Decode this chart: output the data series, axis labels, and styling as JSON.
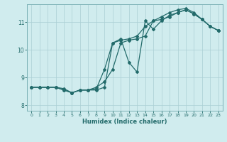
{
  "xlabel": "Humidex (Indice chaleur)",
  "ylabel": "",
  "bg_color": "#d0ecee",
  "grid_color": "#aacfd4",
  "line_color": "#236b6b",
  "xlim": [
    -0.5,
    23.5
  ],
  "ylim": [
    7.8,
    11.65
  ],
  "xticks": [
    0,
    1,
    2,
    3,
    4,
    5,
    6,
    7,
    8,
    9,
    10,
    11,
    12,
    13,
    14,
    15,
    16,
    17,
    18,
    19,
    20,
    21,
    22,
    23
  ],
  "yticks": [
    8,
    9,
    10,
    11
  ],
  "line1_x": [
    0,
    1,
    2,
    3,
    4,
    5,
    6,
    7,
    8,
    9,
    10,
    11,
    12,
    13,
    14,
    15,
    16,
    17,
    18,
    19,
    20,
    21,
    22,
    23
  ],
  "line1_y": [
    8.65,
    8.65,
    8.65,
    8.65,
    8.55,
    8.45,
    8.55,
    8.55,
    8.65,
    8.85,
    9.3,
    10.25,
    10.35,
    10.4,
    10.5,
    11.05,
    11.1,
    11.2,
    11.35,
    11.45,
    11.3,
    11.1,
    10.85,
    10.7
  ],
  "line2_x": [
    0,
    1,
    2,
    3,
    4,
    5,
    6,
    7,
    8,
    9,
    10,
    11,
    12,
    13,
    14,
    15,
    16,
    17,
    18,
    19,
    20,
    21,
    22,
    23
  ],
  "line2_y": [
    8.65,
    8.65,
    8.65,
    8.65,
    8.6,
    8.45,
    8.55,
    8.55,
    8.6,
    9.3,
    10.25,
    10.4,
    9.55,
    9.2,
    11.05,
    10.75,
    11.05,
    11.25,
    11.35,
    11.45,
    11.3,
    11.1,
    10.85,
    10.7
  ],
  "line3_x": [
    0,
    1,
    2,
    3,
    4,
    5,
    6,
    7,
    8,
    9,
    10,
    11,
    12,
    13,
    14,
    15,
    16,
    17,
    18,
    19,
    20,
    21,
    22,
    23
  ],
  "line3_y": [
    8.65,
    8.65,
    8.65,
    8.65,
    8.55,
    8.45,
    8.55,
    8.55,
    8.55,
    8.65,
    10.25,
    10.35,
    10.4,
    10.5,
    10.85,
    11.05,
    11.2,
    11.35,
    11.45,
    11.5,
    11.35,
    11.1,
    10.85,
    10.7
  ]
}
